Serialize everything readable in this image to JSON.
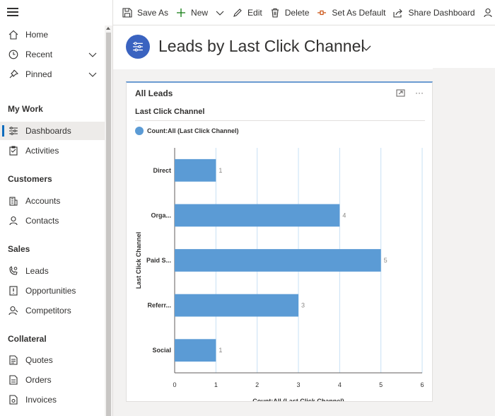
{
  "sidebar": {
    "home": "Home",
    "recent": "Recent",
    "pinned": "Pinned",
    "groups": {
      "my_work": "My Work",
      "customers": "Customers",
      "sales": "Sales",
      "collateral": "Collateral"
    },
    "items": {
      "dashboards": "Dashboards",
      "activities": "Activities",
      "accounts": "Accounts",
      "contacts": "Contacts",
      "leads": "Leads",
      "opportunities": "Opportunities",
      "competitors": "Competitors",
      "quotes": "Quotes",
      "orders": "Orders",
      "invoices": "Invoices"
    },
    "active": "Dashboards"
  },
  "toolbar": {
    "save_as": "Save As",
    "new": "New",
    "edit": "Edit",
    "delete": "Delete",
    "set_as_default": "Set As Default",
    "share_dashboard": "Share Dashboard"
  },
  "header": {
    "title": "Leads by Last Click Channel"
  },
  "card": {
    "title": "All Leads",
    "chart_subtitle": "Last Click Channel",
    "legend": "Count:All (Last Click Channel)",
    "more": "···"
  },
  "colors": {
    "bar": "#5b9bd5",
    "accent": "#0f6cbd",
    "dash_icon_bg": "#3a63c0"
  },
  "chart_data": {
    "type": "bar",
    "orientation": "horizontal",
    "categories": [
      "Direct",
      "Orga...",
      "Paid S...",
      "Referr...",
      "Social"
    ],
    "values": [
      1,
      4,
      5,
      3,
      1
    ],
    "data_labels": [
      "1",
      "4",
      "5",
      "3",
      "1"
    ],
    "xlabel": "Count:All (Last Click Channel)",
    "ylabel": "Last Click Channel",
    "xlim": [
      0,
      6
    ],
    "x_ticks": [
      "0",
      "1",
      "2",
      "3",
      "4",
      "5",
      "6"
    ],
    "series": [
      {
        "name": "Count:All (Last Click Channel)",
        "values": [
          1,
          4,
          5,
          3,
          1
        ]
      }
    ],
    "grid": "vertical",
    "legend_position": "top-left"
  }
}
